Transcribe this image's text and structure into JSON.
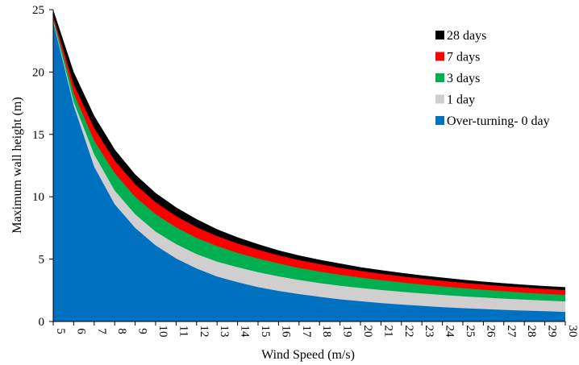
{
  "chart_data": {
    "type": "area",
    "xlabel": "Wind Speed (m/s)",
    "ylabel": "Maximum  wall height (m)",
    "xlim": [
      5,
      30
    ],
    "ylim": [
      0,
      25
    ],
    "x_ticks": [
      "5",
      "6",
      "7",
      "8",
      "9",
      "10",
      "11",
      "12",
      "13",
      "14",
      "15",
      "16",
      "17",
      "18",
      "19",
      "20",
      "21",
      "22",
      "23",
      "24",
      "25",
      "26",
      "27",
      "28",
      "29",
      "30"
    ],
    "y_ticks": [
      "0",
      "5",
      "10",
      "15",
      "20",
      "25"
    ],
    "legend_position": "top-right",
    "stacked": false,
    "x": [
      5,
      6,
      7,
      8,
      9,
      10,
      11,
      12,
      13,
      14,
      15,
      16,
      17,
      18,
      19,
      20,
      21,
      22,
      23,
      24,
      25,
      26,
      27,
      28,
      29,
      30
    ],
    "series": [
      {
        "name": "28 days",
        "color": "#000000",
        "values": [
          25.0,
          20.0,
          16.5,
          13.8,
          11.8,
          10.3,
          9.15,
          8.2,
          7.4,
          6.75,
          6.2,
          5.7,
          5.3,
          4.95,
          4.65,
          4.35,
          4.12,
          3.9,
          3.7,
          3.52,
          3.35,
          3.2,
          3.07,
          2.95,
          2.84,
          2.75
        ]
      },
      {
        "name": "7 days",
        "color": "#ff0000",
        "values": [
          24.5,
          19.0,
          15.5,
          12.9,
          11.0,
          9.55,
          8.45,
          7.55,
          6.85,
          6.25,
          5.75,
          5.3,
          4.92,
          4.6,
          4.3,
          4.05,
          3.83,
          3.62,
          3.43,
          3.26,
          3.1,
          2.96,
          2.83,
          2.72,
          2.61,
          2.52
        ]
      },
      {
        "name": "3 days",
        "color": "#00b050",
        "values": [
          24.3,
          18.3,
          14.5,
          11.9,
          10.0,
          8.6,
          7.55,
          6.7,
          6.05,
          5.5,
          5.05,
          4.65,
          4.3,
          4.0,
          3.75,
          3.52,
          3.32,
          3.13,
          2.96,
          2.81,
          2.67,
          2.54,
          2.42,
          2.31,
          2.21,
          2.13
        ]
      },
      {
        "name": "1 day",
        "color": "#d0cece",
        "values": [
          24.1,
          17.6,
          13.4,
          10.5,
          8.6,
          7.2,
          6.2,
          5.4,
          4.8,
          4.35,
          3.95,
          3.62,
          3.33,
          3.08,
          2.87,
          2.69,
          2.53,
          2.38,
          2.25,
          2.13,
          2.02,
          1.92,
          1.83,
          1.75,
          1.68,
          1.61
        ]
      },
      {
        "name": "Over-turning- 0 day",
        "color": "#0070c0",
        "values": [
          24.0,
          17.3,
          12.4,
          9.4,
          7.5,
          6.1,
          5.05,
          4.25,
          3.6,
          3.15,
          2.75,
          2.45,
          2.2,
          1.98,
          1.78,
          1.62,
          1.48,
          1.36,
          1.25,
          1.15,
          1.07,
          1.0,
          0.93,
          0.87,
          0.82,
          0.77
        ]
      }
    ]
  }
}
